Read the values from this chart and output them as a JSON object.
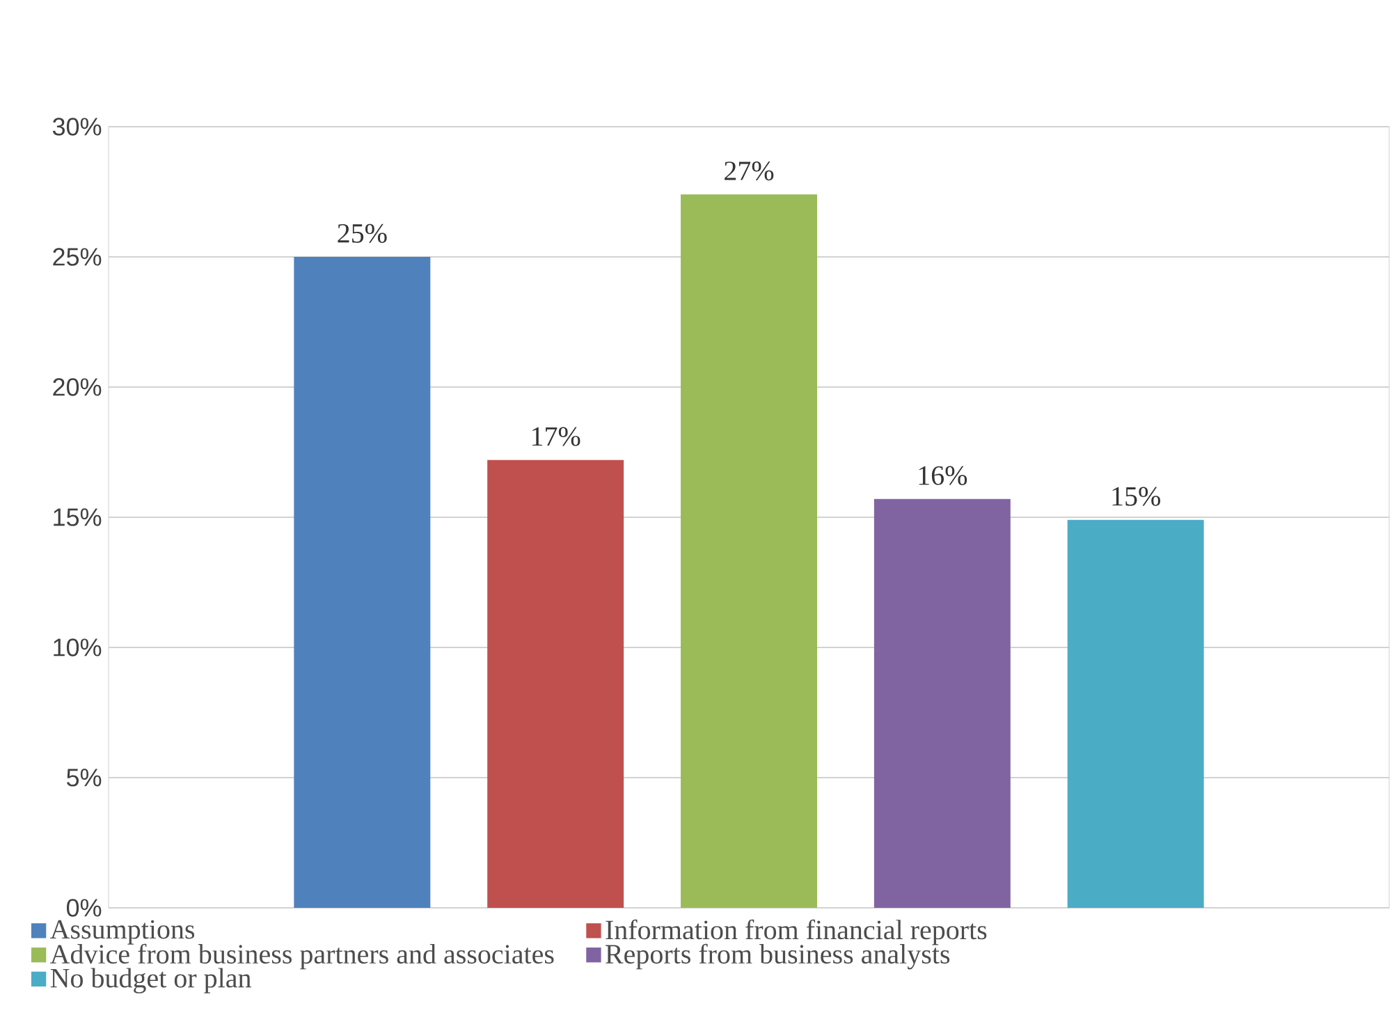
{
  "chart_data": {
    "type": "bar",
    "categories": [
      null
    ],
    "series": [
      {
        "name": "Assumptions",
        "color": "#4f81bd",
        "values": [
          25
        ],
        "value_labels": [
          "25%"
        ]
      },
      {
        "name": "Information from financial reports",
        "color": "#c0504d",
        "values": [
          17.2
        ],
        "value_labels": [
          "17%"
        ]
      },
      {
        "name": "Advice from business partners and associates",
        "color": "#9bbb59",
        "values": [
          27.4
        ],
        "value_labels": [
          "27%"
        ]
      },
      {
        "name": "Reports from business analysts",
        "color": "#8064a2",
        "values": [
          15.7
        ],
        "value_labels": [
          "16%"
        ]
      },
      {
        "name": "No budget or plan",
        "color": "#4bacc6",
        "values": [
          14.9
        ],
        "value_labels": [
          "15%"
        ]
      }
    ],
    "ylim": [
      0,
      30
    ],
    "yticks": [
      {
        "value": 0,
        "label": "0%"
      },
      {
        "value": 5,
        "label": "5%"
      },
      {
        "value": 10,
        "label": "10%"
      },
      {
        "value": 15,
        "label": "15%"
      },
      {
        "value": 20,
        "label": "20%"
      },
      {
        "value": 25,
        "label": "25%"
      },
      {
        "value": 30,
        "label": "30%"
      }
    ],
    "grid": "y",
    "legend": "bottom"
  }
}
